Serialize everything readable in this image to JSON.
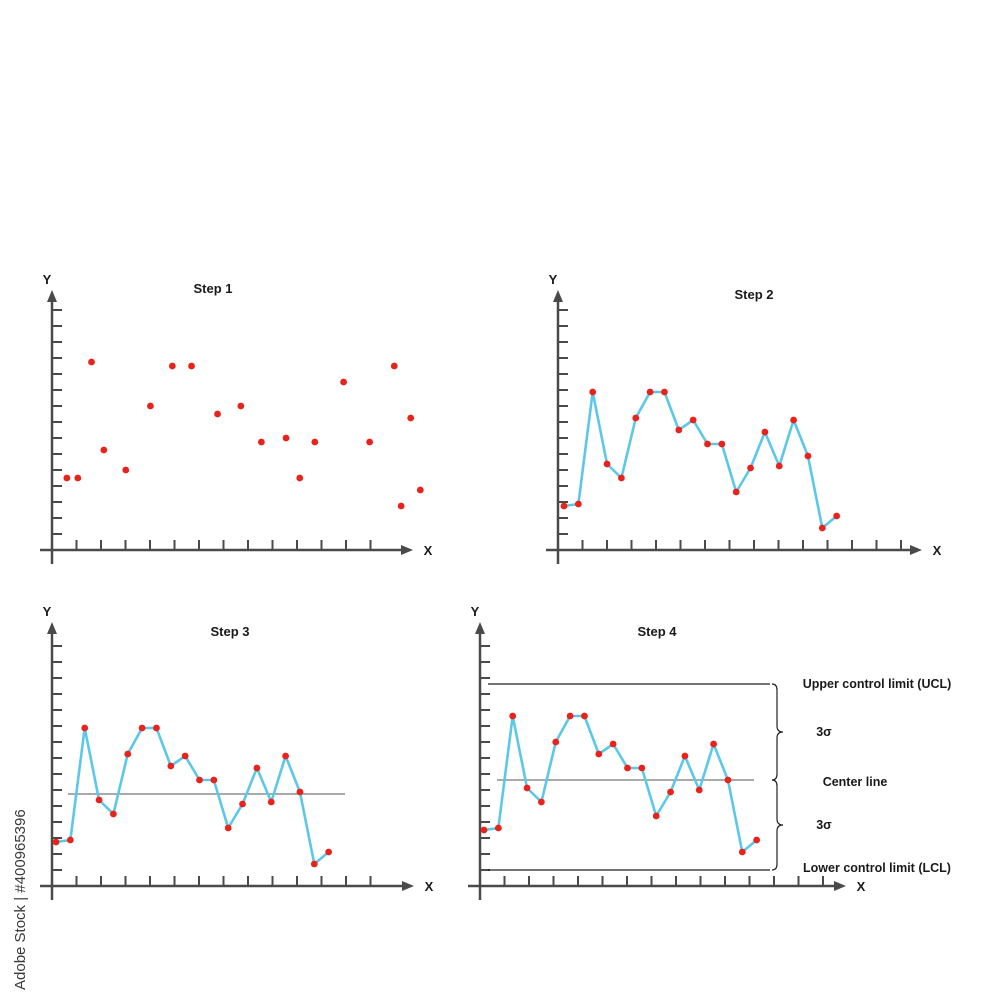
{
  "colors": {
    "axis": "#4a4a4a",
    "line": "#5bc8ea",
    "point": "#e8231b",
    "limit_line": "#222222",
    "center_line": "#555555"
  },
  "stock_id": "Adobe Stock | #400965396",
  "chart_data": [
    {
      "type": "scatter",
      "title": "Step 1",
      "xlabel": "X",
      "ylabel": "Y",
      "ylim": [
        0,
        15
      ],
      "y": [
        4.5,
        4.5,
        11.75,
        6.25,
        5.0,
        9.0,
        11.5,
        11.5,
        8.5,
        9.0,
        6.75,
        7.0,
        4.5,
        6.75,
        10.5,
        6.75,
        11.5,
        2.75,
        8.25,
        3.75
      ],
      "x": [
        0.5,
        1.3,
        2.3,
        3.2,
        4.8,
        6.6,
        8.2,
        9.6,
        11.5,
        13.2,
        14.7,
        16.5,
        17.5,
        18.6,
        20.7,
        22.6,
        24.4,
        24.9,
        25.6,
        26.3
      ]
    },
    {
      "type": "line",
      "title": "Step 2",
      "xlabel": "X",
      "ylabel": "Y",
      "ylim": [
        0,
        15
      ],
      "y": [
        2.75,
        2.875,
        9.875,
        5.375,
        4.5,
        8.25,
        9.875,
        9.875,
        7.5,
        8.125,
        6.625,
        6.625,
        3.625,
        5.125,
        7.375,
        5.25,
        8.125,
        5.875,
        1.375,
        2.125
      ]
    },
    {
      "type": "line",
      "title": "Step 3",
      "xlabel": "X",
      "ylabel": "Y",
      "ylim": [
        0,
        15
      ],
      "y": [
        2.75,
        2.875,
        9.875,
        5.375,
        4.5,
        8.25,
        9.875,
        9.875,
        7.5,
        8.125,
        6.625,
        6.625,
        3.625,
        5.125,
        7.375,
        5.25,
        8.125,
        5.875,
        1.375,
        2.125
      ],
      "center_line": 5.75
    },
    {
      "type": "line",
      "title": "Step 4",
      "xlabel": "X",
      "ylabel": "Y",
      "ylim": [
        0,
        15
      ],
      "y": [
        3.5,
        3.625,
        10.625,
        6.125,
        5.25,
        9.0,
        10.625,
        10.625,
        8.25,
        8.875,
        7.375,
        7.375,
        4.375,
        5.875,
        8.125,
        6.0,
        8.875,
        6.625,
        2.125,
        2.875
      ],
      "center_line": 6.625,
      "ucl": 12.625,
      "lcl": 1.0,
      "annotations": {
        "ucl_label": "Upper control limit (UCL)",
        "sigma_upper": "3σ",
        "center_label": "Center line",
        "sigma_lower": "3σ",
        "lcl_label": "Lower control limit (LCL)"
      }
    }
  ]
}
